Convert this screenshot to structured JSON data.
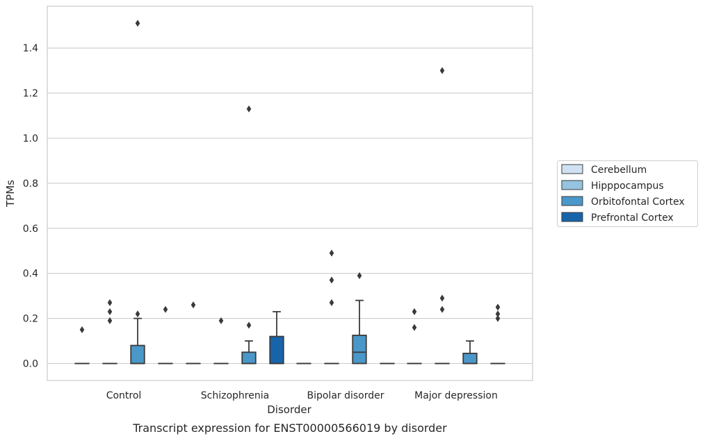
{
  "chart_data": {
    "type": "boxplot",
    "caption": "Transcript expression for ENST00000566019 by disorder",
    "xlabel": "Disorder",
    "ylabel": "TPMs",
    "ylim": [
      -0.075,
      1.6
    ],
    "yticks": [
      0.0,
      0.2,
      0.4,
      0.6,
      0.8,
      1.0,
      1.2,
      1.4
    ],
    "ytick_labels": [
      "0.0",
      "0.2",
      "0.4",
      "0.6",
      "0.8",
      "1.0",
      "1.2",
      "1.4"
    ],
    "grid": true,
    "legend_position": "right, outside plot",
    "categories": [
      "Control",
      "Schizophrenia",
      "Bipolar disorder",
      "Major depression"
    ],
    "series": [
      {
        "name": "Cerebellum",
        "color": "#d0e1f2",
        "boxes": [
          {
            "q1": 0,
            "median": 0,
            "q3": 0,
            "whisker_low": 0,
            "whisker_high": 0,
            "outliers": [
              0.15
            ]
          },
          {
            "q1": 0,
            "median": 0,
            "q3": 0,
            "whisker_low": 0,
            "whisker_high": 0,
            "outliers": [
              0.26
            ]
          },
          {
            "q1": 0,
            "median": 0,
            "q3": 0,
            "whisker_low": 0,
            "whisker_high": 0,
            "outliers": []
          },
          {
            "q1": 0,
            "median": 0,
            "q3": 0,
            "whisker_low": 0,
            "whisker_high": 0,
            "outliers": [
              0.16,
              0.23
            ]
          }
        ]
      },
      {
        "name": "Hipppocampus",
        "color": "#94c4df",
        "boxes": [
          {
            "q1": 0,
            "median": 0,
            "q3": 0,
            "whisker_low": 0,
            "whisker_high": 0,
            "outliers": [
              0.19,
              0.23,
              0.27
            ]
          },
          {
            "q1": 0,
            "median": 0,
            "q3": 0,
            "whisker_low": 0,
            "whisker_high": 0,
            "outliers": [
              0.19
            ]
          },
          {
            "q1": 0,
            "median": 0,
            "q3": 0,
            "whisker_low": 0,
            "whisker_high": 0,
            "outliers": [
              0.27,
              0.37,
              0.49
            ]
          },
          {
            "q1": 0,
            "median": 0,
            "q3": 0,
            "whisker_low": 0,
            "whisker_high": 0,
            "outliers": [
              0.24,
              0.29,
              1.3
            ]
          }
        ]
      },
      {
        "name": "Orbitofontal Cortex",
        "color": "#4a98c9",
        "boxes": [
          {
            "q1": 0,
            "median": 0,
            "q3": 0.08,
            "whisker_low": 0,
            "whisker_high": 0.2,
            "outliers": [
              0.22,
              1.51
            ]
          },
          {
            "q1": 0,
            "median": 0,
            "q3": 0.05,
            "whisker_low": 0,
            "whisker_high": 0.1,
            "outliers": [
              0.17,
              1.13
            ]
          },
          {
            "q1": 0,
            "median": 0.05,
            "q3": 0.125,
            "whisker_low": 0,
            "whisker_high": 0.28,
            "outliers": [
              0.39
            ]
          },
          {
            "q1": 0,
            "median": 0,
            "q3": 0.045,
            "whisker_low": 0,
            "whisker_high": 0.1,
            "outliers": []
          }
        ]
      },
      {
        "name": "Prefrontal Cortex",
        "color": "#1764ab",
        "boxes": [
          {
            "q1": 0,
            "median": 0,
            "q3": 0,
            "whisker_low": 0,
            "whisker_high": 0,
            "outliers": [
              0.24
            ]
          },
          {
            "q1": 0,
            "median": 0,
            "q3": 0.12,
            "whisker_low": 0,
            "whisker_high": 0.23,
            "outliers": []
          },
          {
            "q1": 0,
            "median": 0,
            "q3": 0,
            "whisker_low": 0,
            "whisker_high": 0,
            "outliers": []
          },
          {
            "q1": 0,
            "median": 0,
            "q3": 0,
            "whisker_low": 0,
            "whisker_high": 0,
            "outliers": [
              0.2,
              0.22,
              0.25
            ]
          }
        ]
      }
    ]
  }
}
